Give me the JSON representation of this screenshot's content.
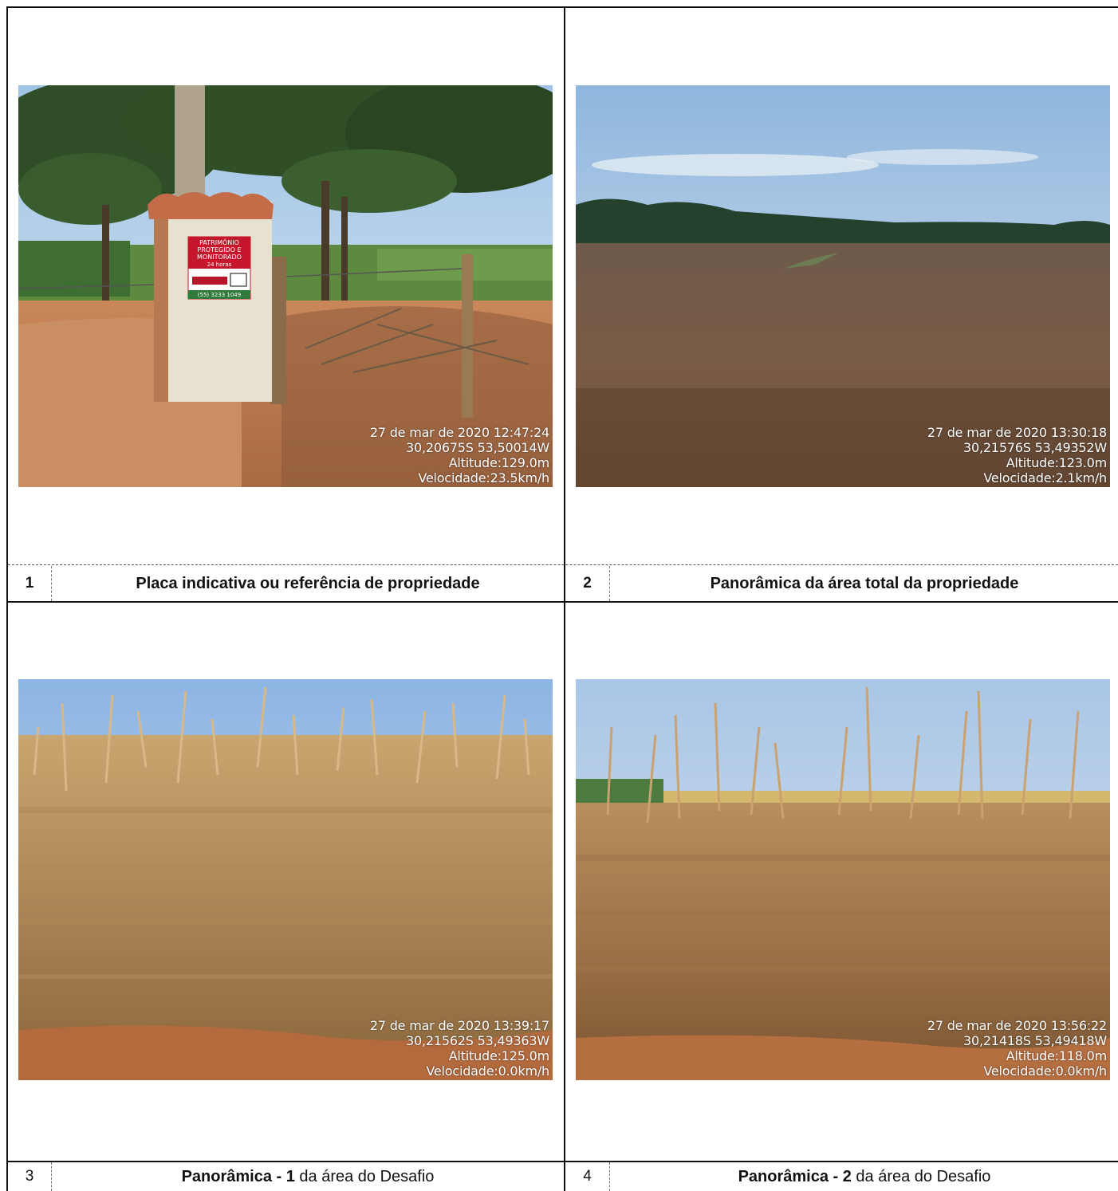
{
  "cells": [
    {
      "number": "1",
      "caption": "Placa indicativa ou referência de propriedade",
      "photo": {
        "subject": "farm-gate-sign",
        "sign_lines": [
          "PATRIMÔNIO",
          "PROTEGIDO E",
          "MONITORADO",
          "24 horas"
        ],
        "sign_phone": "(55) 3233 1049",
        "stamp": [
          "27 de mar de 2020 12:47:24",
          "30,20675S 53,50014W",
          "Altitude:129.0m",
          "Velocidade:23.5km/h"
        ]
      }
    },
    {
      "number": "2",
      "caption": "Panorâmica da área total da propriedade",
      "photo": {
        "subject": "panoramic-field",
        "stamp": [
          "27 de mar de 2020 13:30:18",
          "30,21576S 53,49352W",
          "Altitude:123.0m",
          "Velocidade:2.1km/h"
        ]
      }
    },
    {
      "number": "3",
      "caption_bold": "Panorâmica - 1",
      "caption_rest": " da área do Desafio",
      "photo": {
        "subject": "soybean-closeup",
        "stamp": [
          "27 de mar de 2020 13:39:17",
          "30,21562S 53,49363W",
          "Altitude:125.0m",
          "Velocidade:0.0km/h"
        ]
      }
    },
    {
      "number": "4",
      "caption_bold": "Panorâmica - 2",
      "caption_rest": " da área do Desafio",
      "photo": {
        "subject": "soybean-closeup",
        "stamp": [
          "27 de mar de 2020 13:56:22",
          "30,21418S 53,49418W",
          "Altitude:118.0m",
          "Velocidade:0.0km/h"
        ]
      }
    }
  ]
}
